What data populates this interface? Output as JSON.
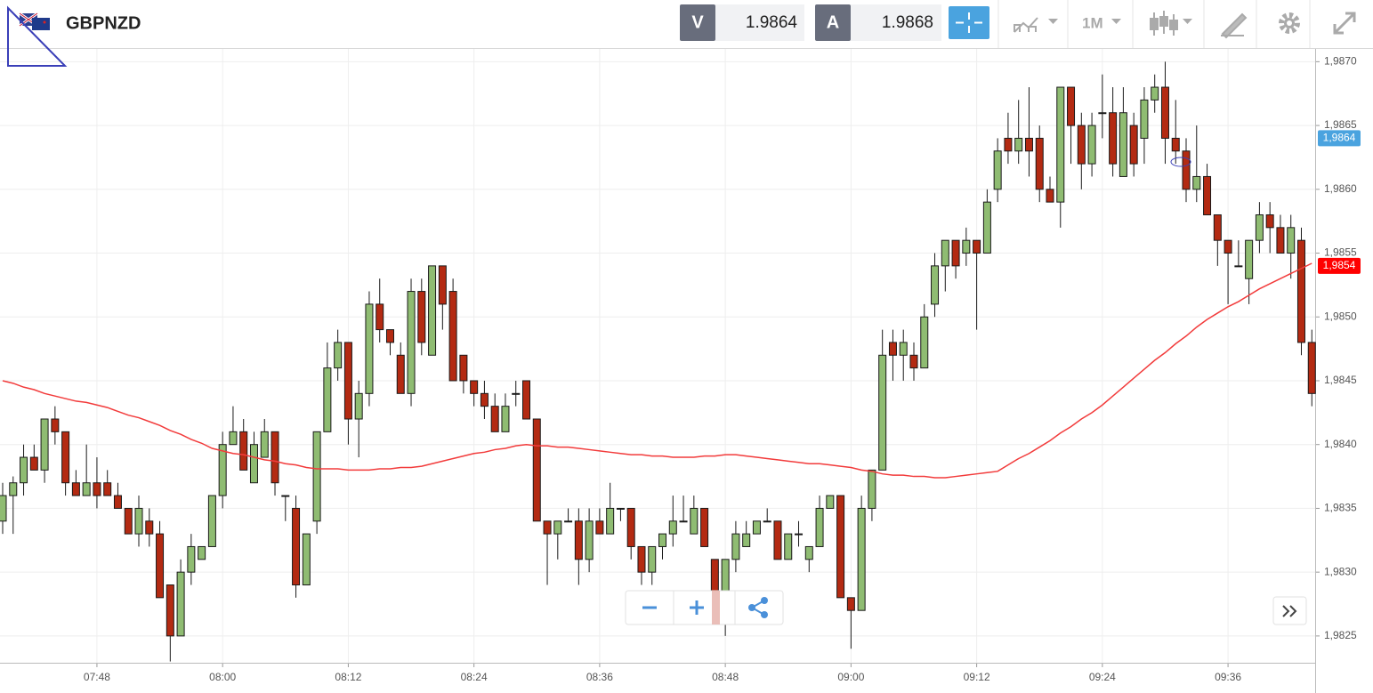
{
  "toolbar": {
    "symbol": "GBPNZD",
    "sell_label": "V",
    "sell_price": 1.9864,
    "buy_label": "A",
    "buy_price": 1.9868,
    "timeframe": "1M"
  },
  "chart_data": {
    "type": "candlestick",
    "categories": [
      null,
      null,
      null,
      null,
      null,
      null,
      null,
      null,
      null,
      "07:48",
      null,
      null,
      null,
      null,
      null,
      null,
      null,
      null,
      null,
      null,
      null,
      "08:00",
      null,
      null,
      null,
      null,
      null,
      null,
      null,
      null,
      null,
      null,
      null,
      "08:12",
      null,
      null,
      null,
      null,
      null,
      null,
      null,
      null,
      null,
      null,
      null,
      "08:24",
      null,
      null,
      null,
      null,
      null,
      null,
      null,
      null,
      null,
      null,
      null,
      "08:36",
      null,
      null,
      null,
      null,
      null,
      null,
      null,
      null,
      null,
      null,
      null,
      "08:48",
      null,
      null,
      null,
      null,
      null,
      null,
      null,
      null,
      null,
      null,
      null,
      "09:00",
      null,
      null,
      null,
      null,
      null,
      null,
      null,
      null,
      null,
      null,
      null,
      "09:12",
      null,
      null,
      null,
      null,
      null,
      null,
      null,
      null,
      null,
      null,
      null,
      "09:24",
      null,
      null,
      null,
      null,
      null,
      null,
      null,
      null,
      null,
      null,
      null,
      "09:36",
      null,
      null,
      null,
      null,
      null,
      null,
      null,
      null
    ],
    "open": [
      1.9834,
      1.9836,
      1.9837,
      1.9839,
      1.9838,
      1.9842,
      1.9841,
      1.9837,
      1.9836,
      1.9837,
      1.9837,
      1.9836,
      1.9835,
      1.9833,
      1.9834,
      1.9833,
      1.9829,
      1.9825,
      1.983,
      1.9831,
      1.9832,
      1.9836,
      1.984,
      1.9841,
      1.9837,
      1.9839,
      1.9841,
      1.9836,
      1.9835,
      1.9829,
      1.9834,
      1.9841,
      1.9846,
      1.9848,
      1.9842,
      1.9844,
      1.9851,
      1.9849,
      1.9847,
      1.9844,
      1.9852,
      1.9847,
      1.9854,
      1.9852,
      1.9847,
      1.9845,
      1.9844,
      1.9843,
      1.9841,
      1.9844,
      1.9845,
      1.9842,
      1.9834,
      1.9833,
      1.9834,
      1.9834,
      1.9831,
      1.9834,
      1.9833,
      1.9835,
      1.9835,
      1.9832,
      1.983,
      1.9832,
      1.9833,
      1.9834,
      1.9833,
      1.9835,
      1.9831,
      1.9826,
      1.9831,
      1.9832,
      1.9833,
      1.9834,
      1.9834,
      1.9831,
      1.9833,
      1.9831,
      1.9832,
      1.9835,
      1.9836,
      1.9828,
      1.9827,
      1.9835,
      1.9838,
      1.9848,
      1.9847,
      1.9847,
      1.9846,
      1.9851,
      1.9854,
      1.9856,
      1.9855,
      1.9856,
      1.9855,
      1.986,
      1.9864,
      1.9863,
      1.9864,
      1.9864,
      1.986,
      1.9859,
      1.9868,
      1.9865,
      1.9862,
      1.9866,
      1.9866,
      1.9861,
      1.9865,
      1.9864,
      1.9867,
      1.9868,
      1.9864,
      1.9863,
      1.986,
      1.9861,
      1.9858,
      1.9856,
      1.9854,
      1.9853,
      1.9856,
      1.9858,
      1.9857,
      1.9855,
      1.9856,
      1.9848
    ],
    "high": [
      1.9837,
      1.98375,
      1.984,
      1.984,
      1.9842,
      1.9843,
      1.9841,
      1.9838,
      1.984,
      1.9839,
      1.9838,
      1.9837,
      1.9835,
      1.9836,
      1.9835,
      1.9834,
      1.9829,
      1.9831,
      1.9833,
      1.9832,
      1.9836,
      1.9841,
      1.9843,
      1.9842,
      1.9841,
      1.9842,
      1.9841,
      1.9836,
      1.9836,
      1.9833,
      1.9841,
      1.9848,
      1.9849,
      1.9848,
      1.9845,
      1.9852,
      1.9853,
      1.9849,
      1.9848,
      1.9853,
      1.9853,
      1.9854,
      1.9854,
      1.9853,
      1.9847,
      1.9845,
      1.9845,
      1.9844,
      1.9844,
      1.9845,
      1.9845,
      1.9842,
      1.9834,
      1.9834,
      1.9835,
      1.9835,
      1.9835,
      1.9835,
      1.9837,
      1.9835,
      1.9835,
      1.9832,
      1.9832,
      1.9833,
      1.9836,
      1.9836,
      1.9836,
      1.9835,
      1.9831,
      1.9831,
      1.9834,
      1.9834,
      1.9834,
      1.9835,
      1.9834,
      1.9833,
      1.9834,
      1.9832,
      1.9836,
      1.9836,
      1.9836,
      1.9828,
      1.9836,
      1.9838,
      1.9849,
      1.9849,
      1.9849,
      1.9848,
      1.9851,
      1.9855,
      1.9856,
      1.9856,
      1.9857,
      1.9856,
      1.986,
      1.9864,
      1.9866,
      1.9867,
      1.9868,
      1.9865,
      1.9861,
      1.9868,
      1.9868,
      1.9866,
      1.9866,
      1.9869,
      1.9868,
      1.9868,
      1.9866,
      1.9868,
      1.9869,
      1.987,
      1.9867,
      1.9864,
      1.9865,
      1.9862,
      1.9858,
      1.9856,
      1.9856,
      1.9856,
      1.9859,
      1.9859,
      1.9858,
      1.9858,
      1.9857,
      1.9849
    ],
    "low": [
      1.9833,
      1.9833,
      1.9836,
      1.9838,
      1.9837,
      1.984,
      1.9836,
      1.9836,
      1.9836,
      1.9835,
      1.9836,
      1.9835,
      1.9833,
      1.9832,
      1.9832,
      1.9828,
      1.9823,
      1.9825,
      1.9829,
      1.9831,
      1.9832,
      1.9835,
      1.984,
      1.9838,
      1.9837,
      1.9839,
      1.9836,
      1.9834,
      1.9828,
      1.9829,
      1.9833,
      1.9841,
      1.9845,
      1.984,
      1.9839,
      1.9843,
      1.9848,
      1.9847,
      1.9844,
      1.9843,
      1.9847,
      1.9847,
      1.9849,
      1.9845,
      1.9844,
      1.9843,
      1.9842,
      1.9841,
      1.9841,
      1.9843,
      1.9842,
      1.9834,
      1.9829,
      1.9831,
      1.9834,
      1.9829,
      1.983,
      1.9833,
      1.9833,
      1.9834,
      1.9831,
      1.9829,
      1.9829,
      1.9831,
      1.9832,
      1.9834,
      1.9833,
      1.9832,
      1.9826,
      1.9825,
      1.983,
      1.9832,
      1.9833,
      1.9834,
      1.9831,
      1.9831,
      1.9832,
      1.983,
      1.9832,
      1.9835,
      1.9828,
      1.9824,
      1.9827,
      1.9834,
      1.9838,
      1.9845,
      1.9845,
      1.9845,
      1.9846,
      1.985,
      1.9852,
      1.9853,
      1.9854,
      1.9849,
      1.9855,
      1.9859,
      1.9862,
      1.9862,
      1.9861,
      1.9859,
      1.9859,
      1.9857,
      1.9862,
      1.986,
      1.9861,
      1.9864,
      1.9861,
      1.9861,
      1.9861,
      1.9862,
      1.9866,
      1.9862,
      1.9862,
      1.9859,
      1.9859,
      1.9858,
      1.9854,
      1.9851,
      1.9854,
      1.9851,
      1.9855,
      1.9855,
      1.9855,
      1.9853,
      1.9847,
      1.9843
    ],
    "close": [
      1.9836,
      1.9837,
      1.9839,
      1.9838,
      1.9842,
      1.9841,
      1.9837,
      1.9836,
      1.9837,
      1.9836,
      1.9836,
      1.9835,
      1.9833,
      1.9835,
      1.9833,
      1.9828,
      1.9825,
      1.983,
      1.9832,
      1.9832,
      1.9836,
      1.984,
      1.9841,
      1.9838,
      1.984,
      1.9841,
      1.9837,
      1.9836,
      1.9829,
      1.9833,
      1.9841,
      1.9846,
      1.9848,
      1.9842,
      1.9844,
      1.9851,
      1.9849,
      1.9848,
      1.9844,
      1.9852,
      1.9848,
      1.9854,
      1.9851,
      1.9845,
      1.9845,
      1.9844,
      1.9843,
      1.9841,
      1.9843,
      1.9844,
      1.9842,
      1.9834,
      1.9833,
      1.9834,
      1.9834,
      1.9831,
      1.9834,
      1.9833,
      1.9835,
      1.9835,
      1.9832,
      1.983,
      1.9832,
      1.9833,
      1.9834,
      1.9834,
      1.9835,
      1.9832,
      1.9826,
      1.9831,
      1.9833,
      1.9833,
      1.9834,
      1.9834,
      1.9831,
      1.9833,
      1.9833,
      1.9832,
      1.9835,
      1.9836,
      1.9828,
      1.9827,
      1.9835,
      1.9838,
      1.9847,
      1.9847,
      1.9848,
      1.9846,
      1.985,
      1.9854,
      1.9856,
      1.9854,
      1.9856,
      1.9855,
      1.9859,
      1.9863,
      1.9863,
      1.9864,
      1.9863,
      1.986,
      1.9859,
      1.9868,
      1.9865,
      1.9862,
      1.9865,
      1.9866,
      1.9862,
      1.9866,
      1.9862,
      1.9867,
      1.9868,
      1.9864,
      1.9863,
      1.986,
      1.9861,
      1.9858,
      1.9856,
      1.9855,
      1.9854,
      1.9856,
      1.9858,
      1.9857,
      1.9855,
      1.9857,
      1.9848,
      1.9844
    ],
    "up_color": "#8fbc72",
    "down_color": "#b32a12",
    "moving_average": {
      "color": "#f23b3b",
      "values": [
        1.9845,
        1.98448,
        1.98445,
        1.98443,
        1.9844,
        1.98438,
        1.98436,
        1.98434,
        1.98433,
        1.98431,
        1.98429,
        1.98426,
        1.98423,
        1.98421,
        1.98418,
        1.98415,
        1.98411,
        1.98408,
        1.98404,
        1.98401,
        1.98397,
        1.98395,
        1.98393,
        1.98392,
        1.9839,
        1.98388,
        1.98387,
        1.98385,
        1.98384,
        1.98382,
        1.98381,
        1.98381,
        1.98381,
        1.9838,
        1.9838,
        1.9838,
        1.98381,
        1.98381,
        1.98382,
        1.98382,
        1.98383,
        1.98385,
        1.98387,
        1.98389,
        1.98391,
        1.98393,
        1.98394,
        1.98396,
        1.98397,
        1.98399,
        1.984,
        1.98399,
        1.98399,
        1.98398,
        1.98398,
        1.98397,
        1.98396,
        1.98395,
        1.98394,
        1.98393,
        1.98392,
        1.98392,
        1.98391,
        1.98391,
        1.9839,
        1.9839,
        1.9839,
        1.98391,
        1.98391,
        1.98392,
        1.98392,
        1.98391,
        1.9839,
        1.98389,
        1.98388,
        1.98387,
        1.98386,
        1.98385,
        1.98385,
        1.98384,
        1.98383,
        1.98382,
        1.9838,
        1.98379,
        1.98377,
        1.98376,
        1.98376,
        1.98375,
        1.98375,
        1.98374,
        1.98374,
        1.98375,
        1.98376,
        1.98377,
        1.98378,
        1.98379,
        1.98384,
        1.98389,
        1.98393,
        1.98398,
        1.98403,
        1.98409,
        1.98414,
        1.9842,
        1.98425,
        1.98431,
        1.98438,
        1.98445,
        1.98452,
        1.98459,
        1.98466,
        1.98472,
        1.98479,
        1.98485,
        1.98492,
        1.98498,
        1.98503,
        1.98508,
        1.98512,
        1.98517,
        1.98522,
        1.98526,
        1.9853,
        1.98534,
        1.98538,
        1.98542
      ]
    },
    "ylim": [
      1.98229,
      1.9871
    ],
    "yticks": [
      {
        "value": 1.9825,
        "label": "1,9825"
      },
      {
        "value": 1.983,
        "label": "1,9830"
      },
      {
        "value": 1.9835,
        "label": "1,9835"
      },
      {
        "value": 1.984,
        "label": "1,9840"
      },
      {
        "value": 1.9845,
        "label": "1,9845"
      },
      {
        "value": 1.985,
        "label": "1,9850"
      },
      {
        "value": 1.9855,
        "label": "1,9855"
      },
      {
        "value": 1.986,
        "label": "1,9860"
      },
      {
        "value": 1.9865,
        "label": "1,9865"
      },
      {
        "value": 1.987,
        "label": "1,9870"
      }
    ],
    "price_markers": [
      {
        "value": 1.9864,
        "label": "1,9864",
        "color": "#4aa3df"
      },
      {
        "value": 1.9854,
        "label": "1,9854",
        "color": "#ff0000"
      }
    ],
    "grid": true
  }
}
